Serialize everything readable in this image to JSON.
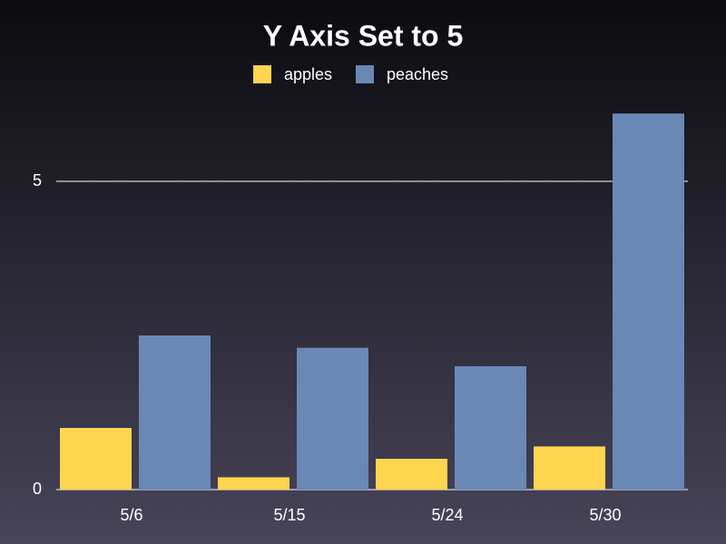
{
  "chart_data": {
    "type": "bar",
    "title": "Y Axis Set to 5",
    "categories": [
      "5/6",
      "5/15",
      "5/24",
      "5/30"
    ],
    "series": [
      {
        "name": "apples",
        "color": "#ffd54f",
        "values": [
          1.0,
          0.2,
          0.5,
          0.7
        ]
      },
      {
        "name": "peaches",
        "color": "#6a88b6",
        "values": [
          2.5,
          2.3,
          2.0,
          6.1
        ]
      }
    ],
    "ylim": [
      0,
      6.5
    ],
    "yticks": [
      0,
      5
    ],
    "grid": true,
    "legend": "top"
  }
}
